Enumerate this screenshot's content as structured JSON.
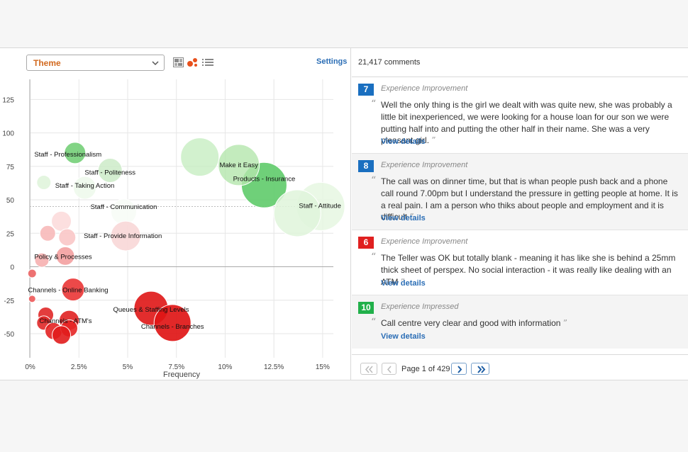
{
  "theme_select": {
    "value": "Theme"
  },
  "view_icons": [
    "grid-view-icon",
    "bubble-view-icon",
    "list-view-icon"
  ],
  "settings_label": "Settings",
  "comment_count": "21,417 comments",
  "colors": {
    "blue": "#1a6fc0",
    "red": "#e02020",
    "green": "#21b04a",
    "link": "#2a6db5",
    "accent": "#d2691e"
  },
  "comments": [
    {
      "score": "7",
      "score_color": "#1a6fc0",
      "category": "Experience Improvement",
      "text": "Well the only thing is the girl we dealt with was quite new, she was probably a little bit inexperienced, we were looking for a house loan for our son we were putting half into and putting the other half in their name. She was a very pleasant girl.",
      "details_label": "View details"
    },
    {
      "score": "8",
      "score_color": "#1a6fc0",
      "category": "Experience Improvement",
      "text": "The call was on dinner time, but that is whan people push back and a phone call round 7.00pm but I understand the pressure in getting people at home. It is a real pain. I am a person who thiks about people and employment and it is difficult",
      "details_label": "View details"
    },
    {
      "score": "6",
      "score_color": "#e02020",
      "category": "Experience Improvement",
      "text": "The Teller was OK but totally blank - meaning it has like she is behind a 25mm thick sheet of perspex. No social interaction - it was really like dealing with an ATM",
      "details_label": "View details"
    },
    {
      "score": "10",
      "score_color": "#21b04a",
      "category": "Experience Impressed",
      "text": "Call centre very clear and good with information",
      "details_label": "View details"
    }
  ],
  "pager": {
    "text": "Page 1 of 429"
  },
  "chart_data": {
    "type": "scatter",
    "xlabel": "Frequency",
    "ylabel": "",
    "xlim": [
      -0.0002,
      0.1555
    ],
    "ylim": [
      -68,
      140
    ],
    "x_ticks": [
      0,
      0.025,
      0.05,
      0.075,
      0.1,
      0.125,
      0.15
    ],
    "x_tick_labels": [
      "0%",
      "2.5%",
      "5%",
      "7.5%",
      "10%",
      "12.5%",
      "15%"
    ],
    "y_ticks": [
      125,
      100,
      75,
      50,
      25,
      0,
      -25,
      -50
    ],
    "y_tick_labels": [
      "125",
      "100",
      "75",
      "50",
      "25",
      "0",
      "-25",
      "-50"
    ],
    "reference_line_y": 45,
    "grid": true,
    "bubbles": [
      {
        "label": "Products - Insurance",
        "x": 0.12,
        "y": 61,
        "r": 32,
        "color": "#5fcb6a",
        "opacity": 0.9
      },
      {
        "label": "Make it Easy",
        "x": 0.107,
        "y": 76,
        "r": 29,
        "color": "#b4e6ad",
        "opacity": 0.8
      },
      {
        "label": "",
        "x": 0.087,
        "y": 82,
        "r": 27,
        "color": "#c3ecbd",
        "opacity": 0.75
      },
      {
        "label": "Staff - Attitude",
        "x": 0.149,
        "y": 45,
        "r": 34,
        "color": "#e6f7e2",
        "opacity": 0.85
      },
      {
        "label": "",
        "x": 0.137,
        "y": 40,
        "r": 33,
        "color": "#dff4da",
        "opacity": 0.85
      },
      {
        "label": "Staff - Professionalism",
        "x": 0.023,
        "y": 85,
        "r": 15,
        "color": "#74cf78",
        "opacity": 0.9
      },
      {
        "label": "Staff - Politeness",
        "x": 0.041,
        "y": 72,
        "r": 17,
        "color": "#cdebc8",
        "opacity": 0.85
      },
      {
        "label": "",
        "x": 0.007,
        "y": 63,
        "r": 10,
        "color": "#e0f4dc",
        "opacity": 0.9
      },
      {
        "label": "Staff - Taking Action",
        "x": 0.028,
        "y": 59,
        "r": 16,
        "color": "#eef9ec",
        "opacity": 0.9
      },
      {
        "label": "Staff - Communication",
        "x": 0.048,
        "y": 41,
        "r": 18,
        "color": "#f7fcf6",
        "opacity": 0.9
      },
      {
        "label": "Staff - Provide Information",
        "x": 0.049,
        "y": 23,
        "r": 21,
        "color": "#f8d7d7",
        "opacity": 0.9
      },
      {
        "label": "",
        "x": 0.016,
        "y": 34,
        "r": 14,
        "color": "#fcdcdc",
        "opacity": 0.9
      },
      {
        "label": "",
        "x": 0.009,
        "y": 25,
        "r": 11,
        "color": "#f7b9b9",
        "opacity": 0.9
      },
      {
        "label": "",
        "x": 0.019,
        "y": 22,
        "r": 12,
        "color": "#f9c6c6",
        "opacity": 0.9
      },
      {
        "label": "Policy & Processes",
        "x": 0.018,
        "y": 8,
        "r": 13,
        "color": "#f3a0a0",
        "opacity": 0.9
      },
      {
        "label": "",
        "x": 0.006,
        "y": 5,
        "r": 10,
        "color": "#f6b0b0",
        "opacity": 0.9
      },
      {
        "label": "",
        "x": 0.001,
        "y": -5,
        "r": 6,
        "color": "#ec6a6a",
        "opacity": 0.95
      },
      {
        "label": "",
        "x": 0.001,
        "y": -24,
        "r": 5,
        "color": "#ee6060",
        "opacity": 0.95
      },
      {
        "label": "Channels - Online Banking",
        "x": 0.022,
        "y": -17,
        "r": 16,
        "color": "#ea3a3a",
        "opacity": 0.92
      },
      {
        "label": "Queues & Staffing Levels",
        "x": 0.062,
        "y": -31,
        "r": 24,
        "color": "#e01b1b",
        "opacity": 0.92
      },
      {
        "label": "Channels - Branches",
        "x": 0.073,
        "y": -42,
        "r": 26,
        "color": "#e01616",
        "opacity": 0.92
      },
      {
        "label": "",
        "x": 0.008,
        "y": -36,
        "r": 11,
        "color": "#e02828",
        "opacity": 0.9
      },
      {
        "label": "Channels - ATM's",
        "x": 0.02,
        "y": -40,
        "r": 14,
        "color": "#e02020",
        "opacity": 0.9
      },
      {
        "label": "",
        "x": 0.007,
        "y": -42,
        "r": 10,
        "color": "#e02828",
        "opacity": 0.9
      },
      {
        "label": "",
        "x": 0.012,
        "y": -48,
        "r": 12,
        "color": "#e32222",
        "opacity": 0.9
      },
      {
        "label": "",
        "x": 0.02,
        "y": -46,
        "r": 12,
        "color": "#e52626",
        "opacity": 0.9
      },
      {
        "label": "",
        "x": 0.016,
        "y": -51,
        "r": 13,
        "color": "#e11c1c",
        "opacity": 0.9
      }
    ]
  }
}
